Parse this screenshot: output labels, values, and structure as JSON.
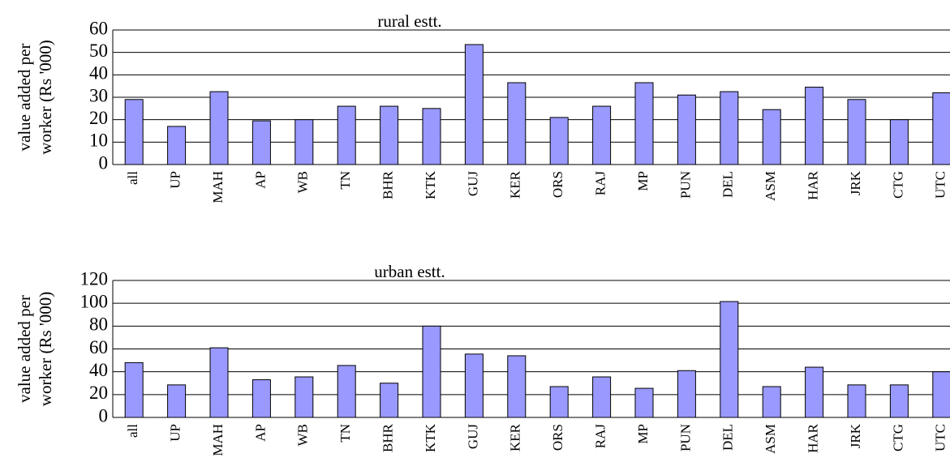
{
  "chart_data": [
    {
      "type": "bar",
      "title": "rural estt.",
      "ylabel": [
        "value added per",
        "worker (Rs '000)"
      ],
      "categories": [
        "all",
        "UP",
        "MAH",
        "AP",
        "WB",
        "TN",
        "BHR",
        "KTK",
        "GUJ",
        "KER",
        "ORS",
        "RAJ",
        "MP",
        "PUN",
        "DEL",
        "ASM",
        "HAR",
        "JRK",
        "CTG",
        "UTC"
      ],
      "values": [
        29,
        17,
        32.5,
        19.5,
        20,
        26,
        26,
        25,
        53.5,
        36.5,
        21,
        26,
        36.5,
        31,
        32.5,
        24.5,
        34.5,
        29,
        20,
        32
      ],
      "color": "#9999ff",
      "ylim": [
        0,
        60
      ],
      "yticks": [
        0,
        10,
        20,
        30,
        40,
        50,
        60
      ],
      "grid": true
    },
    {
      "type": "bar",
      "title": "urban estt.",
      "ylabel": [
        "value added per",
        "worker (Rs '000)"
      ],
      "categories": [
        "all",
        "UP",
        "MAH",
        "AP",
        "WB",
        "TN",
        "BHR",
        "KTK",
        "GUJ",
        "KER",
        "ORS",
        "RAJ",
        "MP",
        "PUN",
        "DEL",
        "ASM",
        "HAR",
        "JRK",
        "CTG",
        "UTC"
      ],
      "values": [
        48,
        28.5,
        61,
        33,
        35.5,
        45.5,
        30,
        80,
        55.5,
        54,
        27,
        35.5,
        25.5,
        41,
        101.5,
        27,
        44,
        28.5,
        28.5,
        40
      ],
      "color": "#9999ff",
      "ylim": [
        0,
        120
      ],
      "yticks": [
        0,
        20,
        40,
        60,
        80,
        100,
        120
      ],
      "grid": true
    }
  ]
}
